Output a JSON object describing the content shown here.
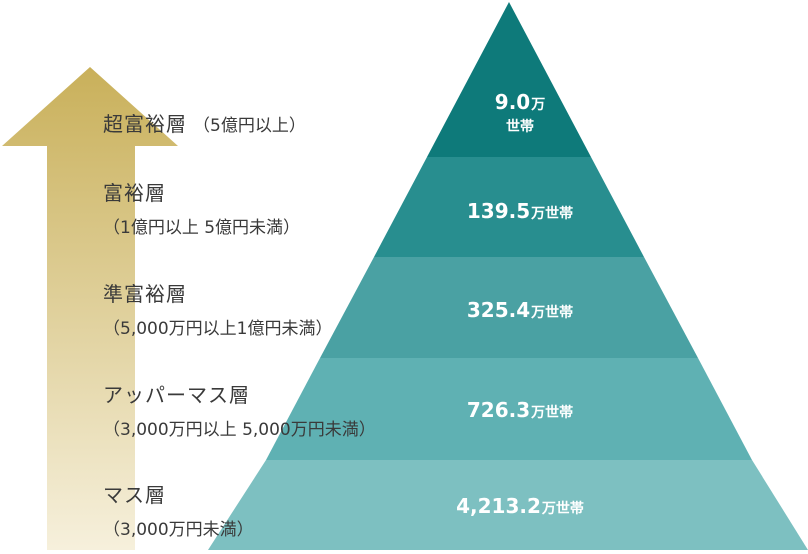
{
  "colors": {
    "arrow_top": "#c9b05a",
    "arrow_bottom": "#f6f0dc",
    "tier_1": "#0e7a7a",
    "tier_2": "#288e8f",
    "tier_3": "#4aa1a3",
    "tier_4": "#5fb1b3",
    "tier_5": "#7dc0c1"
  },
  "tiers": [
    {
      "name": "超富裕層",
      "range": "（5億円以上）",
      "value": "9.0",
      "unit": "万",
      "unit2": "世帯"
    },
    {
      "name": "富裕層",
      "range": "（1億円以上 5億円未満）",
      "value": "139.5",
      "unit": "万世帯"
    },
    {
      "name": "準富裕層",
      "range": "（5,000万円以上1億円未満）",
      "value": "325.4",
      "unit": "万世帯"
    },
    {
      "name": "アッパーマス層",
      "range": "（3,000万円以上  5,000万円未満）",
      "value": "726.3",
      "unit": "万世帯"
    },
    {
      "name": "マス層",
      "range": "（3,000万円未満）",
      "value": "4,213.2",
      "unit": "万世帯"
    }
  ]
}
